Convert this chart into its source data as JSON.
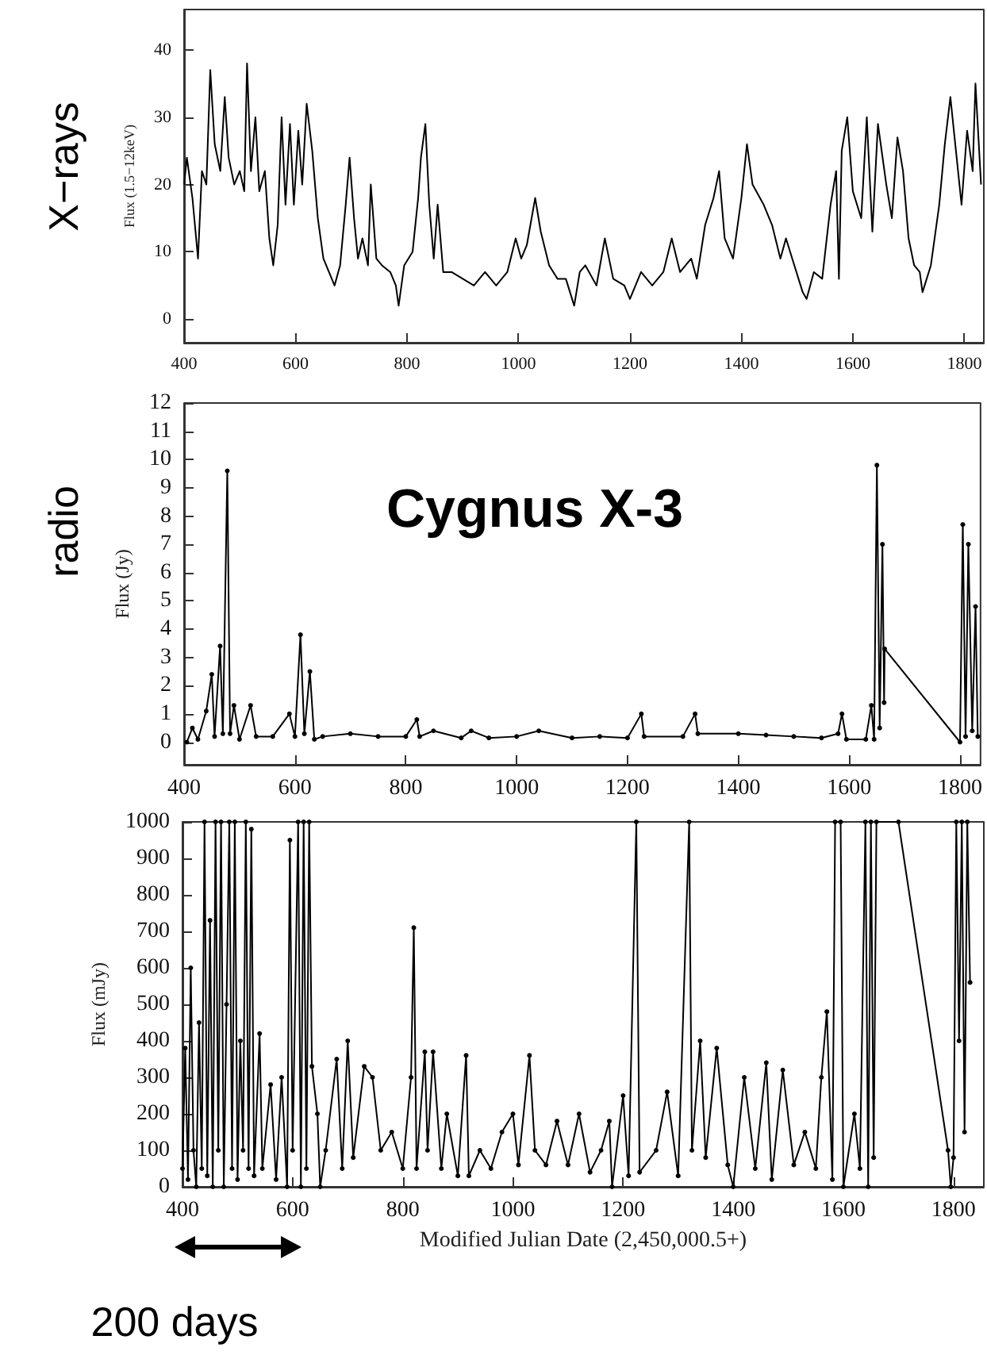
{
  "chart_data": [
    {
      "type": "line",
      "title": "X−rays",
      "ylabel": "Flux (1.5−12keV)",
      "color": "#000000",
      "marker": "none",
      "line_style": "solid",
      "grid": false,
      "xlim": [
        400,
        1835
      ],
      "xticks": [
        400,
        600,
        800,
        1000,
        1200,
        1400,
        1600,
        1800
      ],
      "ylim": [
        -3.5,
        46
      ],
      "yticks": [
        0,
        10,
        20,
        30,
        40
      ],
      "x": [
        400,
        405,
        415,
        425,
        432,
        440,
        447,
        455,
        465,
        473,
        480,
        490,
        500,
        508,
        513,
        520,
        528,
        535,
        545,
        553,
        560,
        568,
        575,
        582,
        590,
        597,
        605,
        612,
        620,
        630,
        640,
        650,
        660,
        670,
        680,
        690,
        697,
        705,
        712,
        720,
        730,
        735,
        745,
        755,
        770,
        780,
        785,
        795,
        810,
        820,
        825,
        833,
        840,
        848,
        855,
        865,
        880,
        900,
        920,
        940,
        960,
        980,
        995,
        1005,
        1015,
        1030,
        1040,
        1055,
        1070,
        1085,
        1100,
        1110,
        1120,
        1140,
        1155,
        1170,
        1190,
        1200,
        1220,
        1240,
        1260,
        1275,
        1290,
        1310,
        1320,
        1335,
        1350,
        1360,
        1370,
        1385,
        1400,
        1410,
        1420,
        1440,
        1455,
        1470,
        1480,
        1495,
        1510,
        1517,
        1530,
        1545,
        1560,
        1570,
        1575,
        1580,
        1590,
        1600,
        1615,
        1625,
        1635,
        1645,
        1660,
        1670,
        1680,
        1690,
        1700,
        1710,
        1720,
        1725,
        1740,
        1755,
        1765,
        1775,
        1785,
        1795,
        1805,
        1815,
        1820,
        1830
      ],
      "values": [
        20,
        24,
        18,
        9,
        22,
        20,
        37,
        26,
        22,
        33,
        24,
        20,
        22,
        19,
        38,
        22,
        30,
        19,
        22,
        12,
        8,
        14,
        30,
        17,
        29,
        17,
        28,
        20,
        32,
        25,
        15,
        9,
        7,
        5,
        8,
        17,
        24,
        15,
        9,
        12,
        8,
        20,
        9,
        8,
        7,
        5,
        2,
        8,
        10,
        18,
        24,
        29,
        17,
        9,
        17,
        7,
        7,
        6,
        5,
        7,
        5,
        7,
        12,
        9,
        11,
        18,
        13,
        8,
        6,
        6,
        2,
        7,
        8,
        5,
        12,
        6,
        5,
        3,
        7,
        5,
        7,
        12,
        7,
        9,
        6,
        14,
        18,
        22,
        12,
        9,
        18,
        26,
        20,
        17,
        14,
        9,
        12,
        8,
        4,
        3,
        7,
        6,
        17,
        22,
        6,
        25,
        30,
        19,
        15,
        30,
        13,
        29,
        20,
        15,
        27,
        22,
        12,
        8,
        7,
        4,
        8,
        17,
        26,
        33,
        25,
        17,
        28,
        22,
        35,
        20
      ]
    },
    {
      "type": "line",
      "title": "radio",
      "ylabel": "Flux (Jy)",
      "annotations": [
        "Cygnus X-3"
      ],
      "color": "#000000",
      "marker": "circle",
      "line_style": "solid",
      "grid": false,
      "xlim": [
        400,
        1837
      ],
      "xticks": [
        400,
        600,
        800,
        1000,
        1200,
        1400,
        1600,
        1800
      ],
      "ylim": [
        -0.8,
        12
      ],
      "yticks": [
        0,
        1,
        2,
        3,
        4,
        5,
        6,
        7,
        8,
        9,
        10,
        11,
        12
      ],
      "x": [
        405,
        415,
        425,
        440,
        450,
        455,
        465,
        470,
        478,
        483,
        490,
        500,
        520,
        530,
        560,
        590,
        600,
        610,
        617,
        627,
        635,
        650,
        700,
        750,
        800,
        820,
        825,
        850,
        900,
        918,
        950,
        1000,
        1040,
        1100,
        1150,
        1200,
        1225,
        1230,
        1300,
        1322,
        1327,
        1400,
        1450,
        1500,
        1550,
        1580,
        1587,
        1595,
        1630,
        1640,
        1645,
        1650,
        1655,
        1660,
        1663,
        1664,
        1800,
        1805,
        1810,
        1815,
        1822,
        1828,
        1832
      ],
      "values": [
        0,
        0.5,
        0.1,
        1.1,
        2.4,
        0.2,
        3.4,
        0.3,
        9.6,
        0.3,
        1.3,
        0.1,
        1.3,
        0.2,
        0.2,
        1,
        0.2,
        3.8,
        0.3,
        2.5,
        0.1,
        0.2,
        0.3,
        0.2,
        0.2,
        0.8,
        0.2,
        0.4,
        0.15,
        0.4,
        0.15,
        0.2,
        0.4,
        0.15,
        0.2,
        0.15,
        1,
        0.2,
        0.2,
        1,
        0.3,
        0.3,
        0.25,
        0.2,
        0.15,
        0.3,
        1,
        0.1,
        0.1,
        1.3,
        0.1,
        9.8,
        0.5,
        7,
        1.4,
        3.3,
        0,
        7.7,
        0.2,
        7,
        0.4,
        4.8,
        0.2
      ]
    },
    {
      "type": "line",
      "ylabel": "Flux (mJy)",
      "xlabel": "Modified Julian Date (2,450,000.5+)",
      "annotations": [
        "200 days"
      ],
      "color": "#000000",
      "marker": "circle",
      "line_style": "solid",
      "grid": false,
      "xlim": [
        400,
        1855
      ],
      "xticks": [
        400,
        600,
        800,
        1000,
        1200,
        1400,
        1600,
        1800
      ],
      "ylim": [
        0,
        1000
      ],
      "yticks": [
        0,
        100,
        200,
        300,
        400,
        500,
        600,
        700,
        800,
        900,
        1000
      ],
      "x": [
        400,
        405,
        410,
        415,
        420,
        425,
        430,
        435,
        440,
        445,
        450,
        455,
        460,
        465,
        470,
        475,
        480,
        485,
        490,
        495,
        500,
        505,
        510,
        515,
        520,
        525,
        530,
        540,
        545,
        560,
        570,
        580,
        590,
        595,
        600,
        610,
        615,
        620,
        625,
        630,
        635,
        645,
        650,
        660,
        680,
        690,
        700,
        710,
        730,
        745,
        760,
        780,
        800,
        815,
        820,
        825,
        840,
        845,
        855,
        870,
        880,
        900,
        915,
        920,
        940,
        960,
        980,
        1000,
        1010,
        1030,
        1040,
        1060,
        1080,
        1100,
        1120,
        1140,
        1160,
        1175,
        1180,
        1200,
        1210,
        1224,
        1230,
        1260,
        1280,
        1300,
        1320,
        1325,
        1340,
        1350,
        1370,
        1390,
        1400,
        1420,
        1440,
        1460,
        1470,
        1490,
        1510,
        1530,
        1550,
        1560,
        1570,
        1580,
        1585,
        1595,
        1600,
        1620,
        1630,
        1640,
        1645,
        1650,
        1655,
        1660,
        1700,
        1790,
        1795,
        1800,
        1805,
        1810,
        1815,
        1820,
        1825,
        1830
      ],
      "values": [
        50,
        380,
        20,
        600,
        100,
        0,
        450,
        50,
        1000,
        30,
        730,
        0,
        1000,
        100,
        1000,
        0,
        500,
        1000,
        50,
        1000,
        20,
        400,
        100,
        1000,
        50,
        980,
        30,
        420,
        50,
        280,
        20,
        300,
        0,
        950,
        100,
        1000,
        0,
        1000,
        50,
        1000,
        330,
        200,
        0,
        100,
        350,
        50,
        400,
        80,
        330,
        300,
        100,
        150,
        50,
        300,
        710,
        50,
        370,
        100,
        370,
        50,
        200,
        30,
        360,
        30,
        100,
        50,
        150,
        200,
        60,
        360,
        100,
        60,
        180,
        60,
        200,
        40,
        100,
        180,
        0,
        250,
        30,
        1000,
        40,
        100,
        260,
        30,
        1000,
        100,
        400,
        80,
        380,
        60,
        0,
        300,
        50,
        340,
        20,
        320,
        60,
        150,
        50,
        300,
        480,
        20,
        1000,
        1000,
        0,
        200,
        50,
        1000,
        0,
        1000,
        80,
        1000,
        1000,
        100,
        0,
        80,
        1000,
        400,
        1000,
        150,
        1000,
        560
      ]
    }
  ]
}
